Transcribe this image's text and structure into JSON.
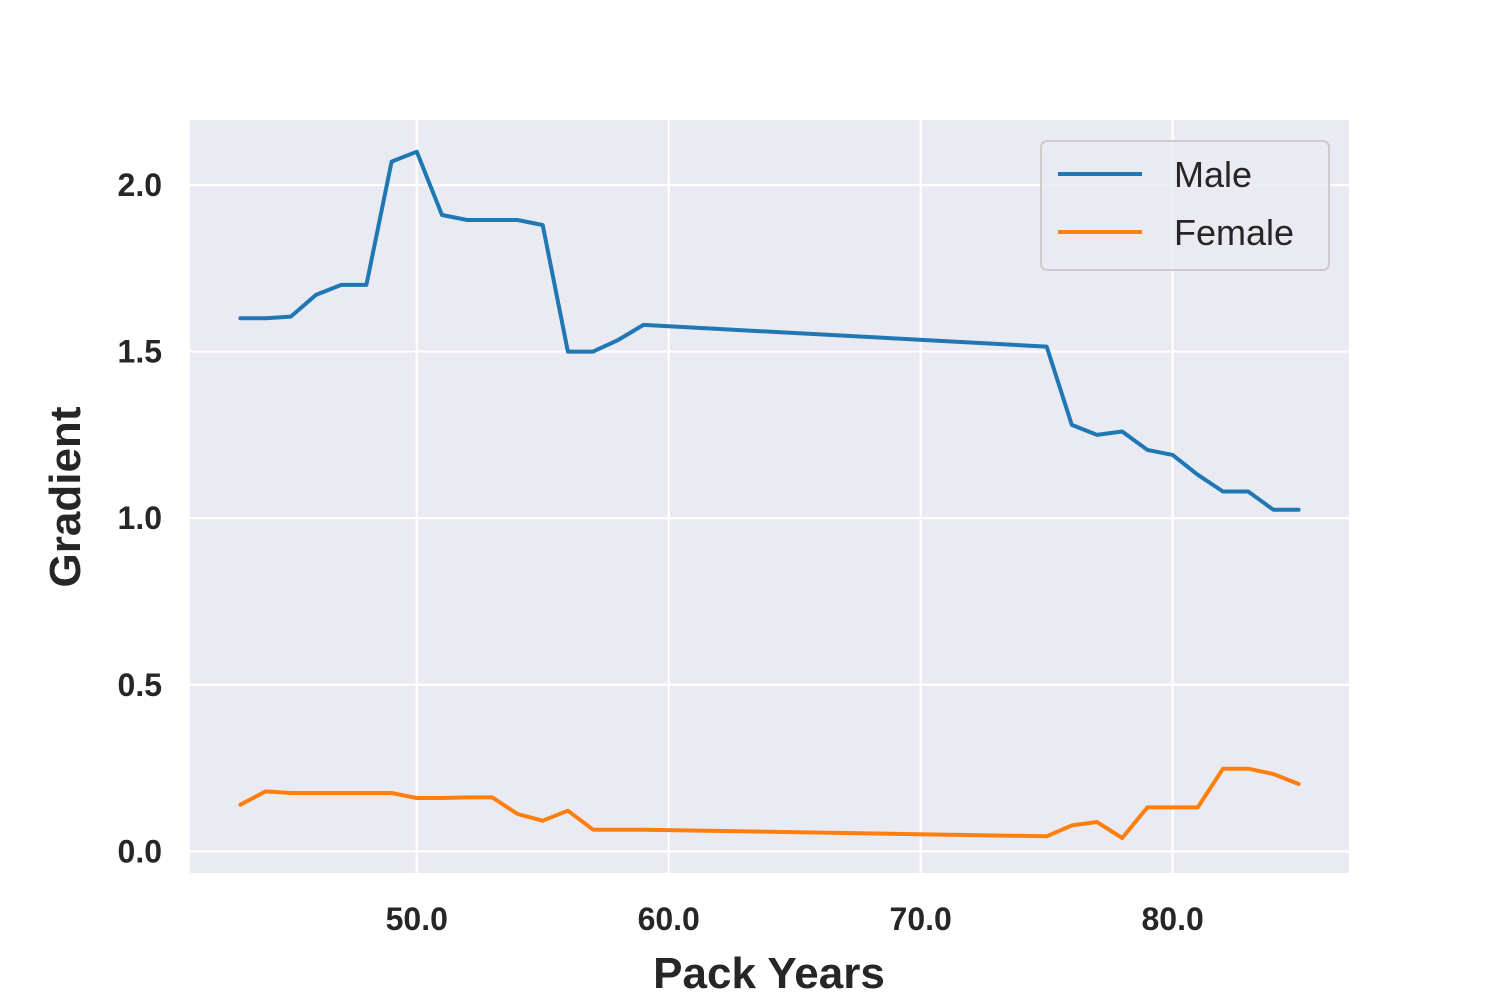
{
  "chart_data": {
    "type": "line",
    "title": "",
    "xlabel": "Pack Years",
    "ylabel": "Gradient",
    "xlim": [
      41.0,
      87.0
    ],
    "ylim": [
      -0.065,
      2.195
    ],
    "xticks": [
      50,
      60,
      70,
      80
    ],
    "xtick_labels": [
      "50.0",
      "60.0",
      "70.0",
      "80.0"
    ],
    "yticks": [
      0.0,
      0.5,
      1.0,
      1.5,
      2.0
    ],
    "ytick_labels": [
      "0.0",
      "0.5",
      "1.0",
      "1.5",
      "2.0"
    ],
    "grid": true,
    "legend_position": "top-right",
    "background_color": "#eaeaf2",
    "series": [
      {
        "name": "Male",
        "color": "#1f77b4",
        "x": [
          43,
          44,
          45,
          46,
          47,
          48,
          49,
          50,
          51,
          52,
          53,
          54,
          55,
          56,
          57,
          58,
          59,
          75,
          76,
          77,
          78,
          79,
          80,
          81,
          82,
          83,
          84,
          85
        ],
        "y": [
          1.6,
          1.6,
          1.605,
          1.67,
          1.7,
          1.7,
          2.07,
          2.1,
          1.91,
          1.895,
          1.895,
          1.895,
          1.88,
          1.5,
          1.5,
          1.535,
          1.58,
          1.515,
          1.28,
          1.25,
          1.26,
          1.205,
          1.19,
          1.13,
          1.08,
          1.08,
          1.025,
          1.025
        ]
      },
      {
        "name": "Female",
        "color": "#ff7f0e",
        "x": [
          43,
          44,
          45,
          46,
          47,
          48,
          49,
          50,
          51,
          52,
          53,
          54,
          55,
          56,
          57,
          58,
          59,
          75,
          76,
          77,
          78,
          79,
          80,
          81,
          82,
          83,
          84,
          85
        ],
        "y": [
          0.14,
          0.18,
          0.175,
          0.175,
          0.175,
          0.175,
          0.175,
          0.16,
          0.16,
          0.162,
          0.162,
          0.112,
          0.092,
          0.122,
          0.065,
          0.065,
          0.065,
          0.045,
          0.078,
          0.088,
          0.04,
          0.132,
          0.132,
          0.132,
          0.248,
          0.248,
          0.232,
          0.202
        ]
      }
    ]
  }
}
